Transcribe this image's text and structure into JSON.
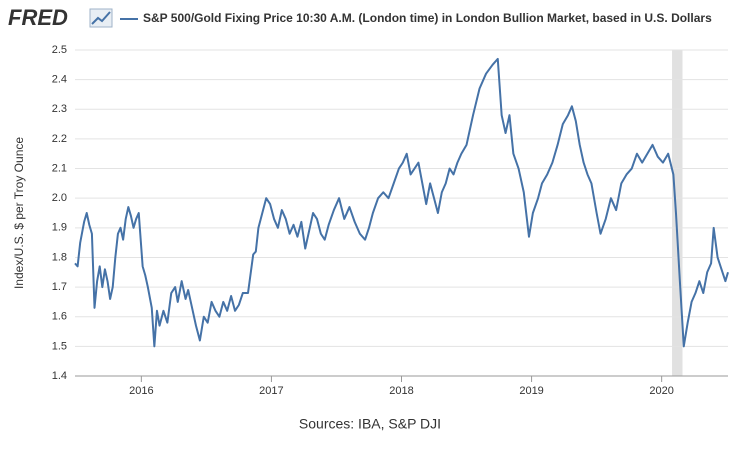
{
  "logo": "FRED",
  "chart_data": {
    "type": "line",
    "y_label": "Index/U.S. $ per Troy Ounce",
    "source": "Sources: IBA, S&P DJI",
    "xlim": [
      2015.49,
      2020.51
    ],
    "xticks": [
      2016,
      2017,
      2018,
      2019,
      2020
    ],
    "ylim": [
      1.4,
      2.5
    ],
    "yticks": [
      1.4,
      1.5,
      1.6,
      1.7,
      1.8,
      1.9,
      {
        "value": 2,
        "label": "2.0"
      },
      2.1,
      2.2,
      2.3,
      2.4,
      2.5
    ],
    "grid": true,
    "shaded_ranges": [
      [
        2020.08,
        2020.16
      ]
    ],
    "x": [
      2015.49,
      2015.51,
      2015.53,
      2015.56,
      2015.58,
      2015.6,
      2015.62,
      2015.64,
      2015.66,
      2015.68,
      2015.7,
      2015.72,
      2015.74,
      2015.76,
      2015.78,
      2015.8,
      2015.82,
      2015.84,
      2015.86,
      2015.88,
      2015.9,
      2015.92,
      2015.94,
      2015.96,
      2015.98,
      2016.01,
      2016.03,
      2016.05,
      2016.08,
      2016.1,
      2016.12,
      2016.14,
      2016.17,
      2016.2,
      2016.23,
      2016.26,
      2016.28,
      2016.31,
      2016.34,
      2016.36,
      2016.39,
      2016.42,
      2016.45,
      2016.48,
      2016.51,
      2016.54,
      2016.57,
      2016.6,
      2016.63,
      2016.66,
      2016.69,
      2016.72,
      2016.75,
      2016.78,
      2016.82,
      2016.86,
      2016.88,
      2016.9,
      2016.93,
      2016.96,
      2016.99,
      2017.02,
      2017.05,
      2017.08,
      2017.11,
      2017.14,
      2017.17,
      2017.2,
      2017.23,
      2017.26,
      2017.29,
      2017.32,
      2017.35,
      2017.38,
      2017.41,
      2017.44,
      2017.48,
      2017.52,
      2017.56,
      2017.6,
      2017.64,
      2017.68,
      2017.72,
      2017.75,
      2017.78,
      2017.82,
      2017.86,
      2017.9,
      2017.94,
      2017.98,
      2018.01,
      2018.04,
      2018.07,
      2018.1,
      2018.13,
      2018.16,
      2018.19,
      2018.22,
      2018.25,
      2018.28,
      2018.31,
      2018.34,
      2018.37,
      2018.4,
      2018.43,
      2018.46,
      2018.5,
      2018.55,
      2018.6,
      2018.65,
      2018.7,
      2018.74,
      2018.77,
      2018.8,
      2018.83,
      2018.86,
      2018.9,
      2018.94,
      2018.98,
      2019.01,
      2019.05,
      2019.08,
      2019.12,
      2019.16,
      2019.2,
      2019.24,
      2019.28,
      2019.31,
      2019.34,
      2019.37,
      2019.4,
      2019.43,
      2019.46,
      2019.5,
      2019.53,
      2019.57,
      2019.61,
      2019.65,
      2019.69,
      2019.73,
      2019.77,
      2019.81,
      2019.85,
      2019.89,
      2019.93,
      2019.97,
      2020.01,
      2020.05,
      2020.09,
      2020.11,
      2020.14,
      2020.17,
      2020.2,
      2020.23,
      2020.26,
      2020.29,
      2020.32,
      2020.35,
      2020.38,
      2020.4,
      2020.43,
      2020.46,
      2020.49,
      2020.51
    ],
    "series": [
      {
        "name": "S&P 500/Gold Fixing Price 10:30 A.M. (London time) in London Bullion Market, based in U.S. Dollars",
        "color": "#4572a7",
        "values": [
          1.78,
          1.77,
          1.85,
          1.92,
          1.95,
          1.91,
          1.88,
          1.63,
          1.72,
          1.77,
          1.7,
          1.76,
          1.72,
          1.66,
          1.7,
          1.8,
          1.88,
          1.9,
          1.86,
          1.93,
          1.97,
          1.94,
          1.9,
          1.93,
          1.95,
          1.77,
          1.74,
          1.7,
          1.63,
          1.5,
          1.62,
          1.57,
          1.62,
          1.58,
          1.68,
          1.7,
          1.65,
          1.72,
          1.66,
          1.69,
          1.63,
          1.57,
          1.52,
          1.6,
          1.58,
          1.65,
          1.62,
          1.6,
          1.65,
          1.62,
          1.67,
          1.62,
          1.64,
          1.68,
          1.68,
          1.81,
          1.82,
          1.9,
          1.95,
          2.0,
          1.98,
          1.93,
          1.9,
          1.96,
          1.93,
          1.88,
          1.91,
          1.87,
          1.92,
          1.83,
          1.89,
          1.95,
          1.93,
          1.88,
          1.86,
          1.91,
          1.96,
          2.0,
          1.93,
          1.97,
          1.92,
          1.88,
          1.86,
          1.9,
          1.95,
          2.0,
          2.02,
          2.0,
          2.05,
          2.1,
          2.12,
          2.15,
          2.08,
          2.1,
          2.12,
          2.05,
          1.98,
          2.05,
          2.0,
          1.95,
          2.02,
          2.05,
          2.1,
          2.08,
          2.12,
          2.15,
          2.18,
          2.28,
          2.37,
          2.42,
          2.45,
          2.47,
          2.28,
          2.22,
          2.28,
          2.15,
          2.1,
          2.02,
          1.87,
          1.95,
          2.0,
          2.05,
          2.08,
          2.12,
          2.18,
          2.25,
          2.28,
          2.31,
          2.26,
          2.18,
          2.12,
          2.08,
          2.05,
          1.95,
          1.88,
          1.93,
          2.0,
          1.96,
          2.05,
          2.08,
          2.1,
          2.15,
          2.12,
          2.15,
          2.18,
          2.14,
          2.12,
          2.15,
          2.08,
          1.95,
          1.72,
          1.5,
          1.58,
          1.65,
          1.68,
          1.72,
          1.68,
          1.75,
          1.78,
          1.9,
          1.8,
          1.76,
          1.72,
          1.75
        ]
      }
    ]
  }
}
